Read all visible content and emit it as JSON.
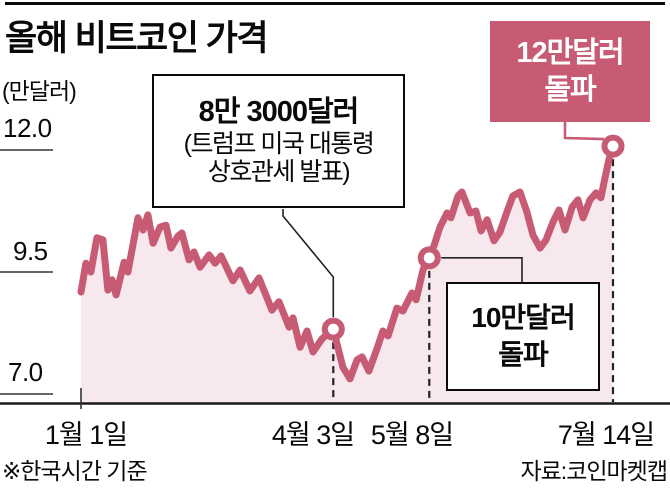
{
  "header": {
    "title": "올해 비트코인 가격"
  },
  "colors": {
    "accent": "#c65b73",
    "area_fill": "#f6e8ec",
    "dashed_line": "#222222",
    "axis": "#1a1a1a",
    "callout_border": "#0a0a0a"
  },
  "chart_data": {
    "type": "area",
    "title": "올해 비트코인 가격",
    "unit_label": "(만달러)",
    "ylabel": "만달러",
    "ylim": [
      7.0,
      12.0
    ],
    "grid": "left-stub-ticks-only",
    "y_ticks": [
      {
        "label": "12.0",
        "value": 12.0
      },
      {
        "label": "9.5",
        "value": 9.5
      },
      {
        "label": "7.0",
        "value": 7.0
      }
    ],
    "x_ticks": [
      {
        "label": "1월 1일",
        "day": 0
      },
      {
        "label": "4월 3일",
        "day": 92
      },
      {
        "label": "5월 8일",
        "day": 127
      },
      {
        "label": "7월 14일",
        "day": 194
      }
    ],
    "series": [
      {
        "name": "비트코인 가격(만달러)",
        "x_unit": "days since 1월 1일",
        "points": [
          [
            0,
            9.09
          ],
          [
            1.8,
            9.68
          ],
          [
            3.6,
            9.5
          ],
          [
            5.8,
            10.2
          ],
          [
            8,
            10.16
          ],
          [
            9.8,
            9.13
          ],
          [
            11.3,
            9.34
          ],
          [
            12.8,
            9.03
          ],
          [
            15.7,
            9.7
          ],
          [
            17.1,
            9.5
          ],
          [
            20.8,
            10.61
          ],
          [
            22.6,
            10.36
          ],
          [
            24.4,
            10.67
          ],
          [
            26.3,
            10.09
          ],
          [
            28.8,
            10.42
          ],
          [
            31,
            10.46
          ],
          [
            32.8,
            9.99
          ],
          [
            35.4,
            10.24
          ],
          [
            36.8,
            10.3
          ],
          [
            39.4,
            9.75
          ],
          [
            41.2,
            9.91
          ],
          [
            43.4,
            9.6
          ],
          [
            46.7,
            9.85
          ],
          [
            48.9,
            9.68
          ],
          [
            51.1,
            9.83
          ],
          [
            55.4,
            9.32
          ],
          [
            58,
            9.54
          ],
          [
            61.6,
            9.11
          ],
          [
            64.9,
            9.38
          ],
          [
            69.6,
            8.72
          ],
          [
            72.2,
            8.89
          ],
          [
            75.9,
            8.37
          ],
          [
            77.3,
            8.56
          ],
          [
            79.9,
            7.96
          ],
          [
            82.4,
            8.29
          ],
          [
            84.6,
            7.86
          ],
          [
            87.9,
            8.13
          ],
          [
            92,
            8.33
          ],
          [
            95.5,
            7.55
          ],
          [
            98.1,
            7.31
          ],
          [
            100.7,
            7.7
          ],
          [
            102.5,
            7.76
          ],
          [
            105,
            7.47
          ],
          [
            108,
            7.94
          ],
          [
            110.1,
            8.29
          ],
          [
            112,
            8.19
          ],
          [
            115.2,
            8.76
          ],
          [
            117.4,
            8.7
          ],
          [
            120.7,
            9.07
          ],
          [
            122.2,
            8.93
          ],
          [
            124.7,
            9.54
          ],
          [
            126.6,
            9.79
          ],
          [
            128.7,
            10.03
          ],
          [
            130.9,
            10.42
          ],
          [
            133.5,
            10.71
          ],
          [
            134.9,
            10.61
          ],
          [
            137.5,
            11.06
          ],
          [
            138.9,
            11.14
          ],
          [
            141.9,
            10.71
          ],
          [
            144,
            10.75
          ],
          [
            145.9,
            10.34
          ],
          [
            148.1,
            10.57
          ],
          [
            150.6,
            10.14
          ],
          [
            152.8,
            10.32
          ],
          [
            155.3,
            10.73
          ],
          [
            157.5,
            11.06
          ],
          [
            160.1,
            11.14
          ],
          [
            162.6,
            10.73
          ],
          [
            164.8,
            10.26
          ],
          [
            167.4,
            9.99
          ],
          [
            169.6,
            10.16
          ],
          [
            172.1,
            10.52
          ],
          [
            174.3,
            10.77
          ],
          [
            176.5,
            10.36
          ],
          [
            179.1,
            10.83
          ],
          [
            181.2,
            10.98
          ],
          [
            183.1,
            10.61
          ],
          [
            185.6,
            10.98
          ],
          [
            187.8,
            11.12
          ],
          [
            189.6,
            11.02
          ],
          [
            191.1,
            11.43
          ],
          [
            192.5,
            11.8
          ],
          [
            194,
            12.08
          ]
        ]
      }
    ],
    "markers": [
      {
        "day": 92,
        "value": 8.33,
        "date": "4월 3일",
        "annotation": "8만 3000달러 (트럼프 미국 대통령 상호관세 발표)"
      },
      {
        "day": 127,
        "value": 9.79,
        "date": "5월 8일",
        "annotation": "10만달러 돌파"
      },
      {
        "day": 194,
        "value": 12.08,
        "date": "7월 14일",
        "annotation": "12만달러 돌파"
      }
    ],
    "legend": "none"
  },
  "callouts": {
    "april": {
      "line1": "8만 3000달러",
      "line2": "(트럼프 미국 대통령",
      "line3": "상호관세 발표)"
    },
    "may": {
      "line1": "10만달러",
      "line2": "돌파"
    },
    "july": {
      "line1": "12만달러",
      "line2": "돌파"
    }
  },
  "footnotes": {
    "left": "※한국시간 기준",
    "right": "자료:코인마켓캡"
  }
}
